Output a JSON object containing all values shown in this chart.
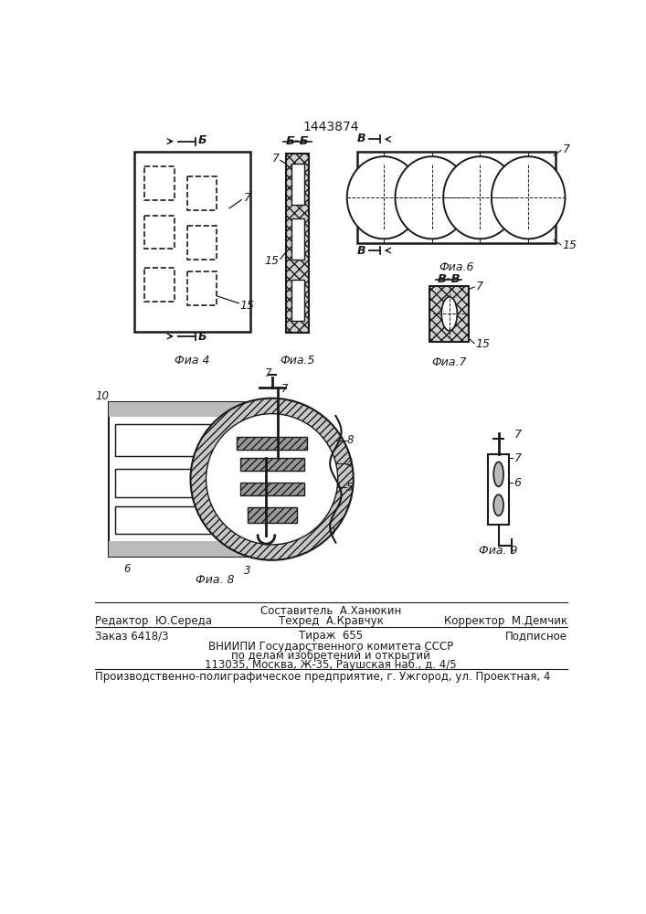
{
  "title_number": "1443874",
  "bg_color": "#ffffff",
  "line_color": "#1a1a1a",
  "fig4_label": "Фиа 4",
  "fig5_label": "Фиа.5",
  "fig6_label": "Фиа.6",
  "fig7_label": "Фиа.7",
  "fig8_label": "Фиа. 8",
  "fig9_label": "Фиа. 9",
  "footer_line1": "Составитель  А.Ханюкин",
  "footer_line2_left": "Редактор  Ю.Середа",
  "footer_line2_mid": "Техред  А.Кравчук",
  "footer_line2_right": "Корректор  М.Демчик",
  "footer_line3_left": "Заказ 6418/3",
  "footer_line3_mid": "Тираж  655",
  "footer_line3_right": "Подписное",
  "footer_line4": "ВНИИПИ Государственного комитета СССР",
  "footer_line5": "по делам изобретений и открытий",
  "footer_line6": "113035, Москва, Ж-35, Раушская наб., д. 4/5",
  "footer_line7": "Производственно-полиграфическое предприятие, г. Ужгород, ул. Проектная, 4"
}
